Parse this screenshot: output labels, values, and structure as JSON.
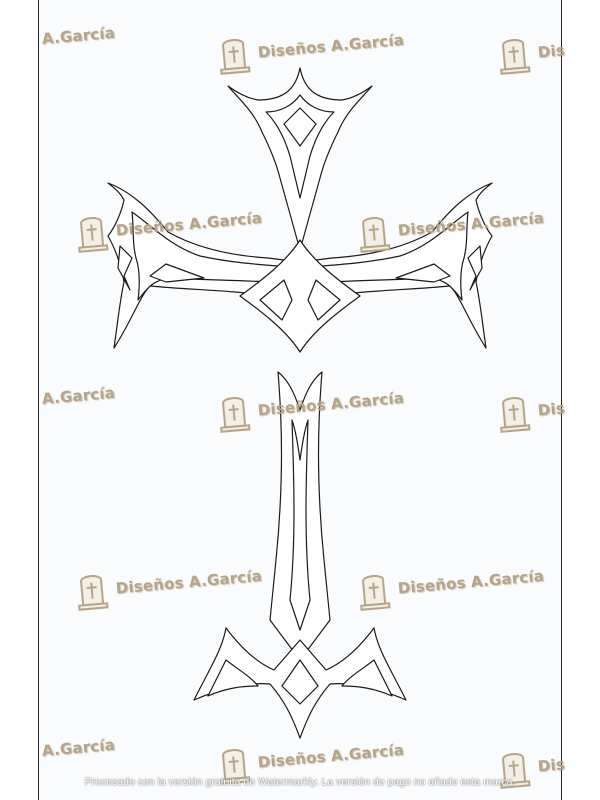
{
  "watermark": {
    "text": "Diseños A.García",
    "partial_text": "A.García",
    "clipped_text": "Dis",
    "color": "#b6a486",
    "icon": "tombstone-cross-icon"
  },
  "footer": {
    "note": "Procesado con la versión gratuita de Watermarkly. La versión de pago no añade esta marca."
  },
  "artwork": {
    "subject": "cross-outline",
    "line_color": "#1a1a1a",
    "fill_color": "#ffffff"
  }
}
